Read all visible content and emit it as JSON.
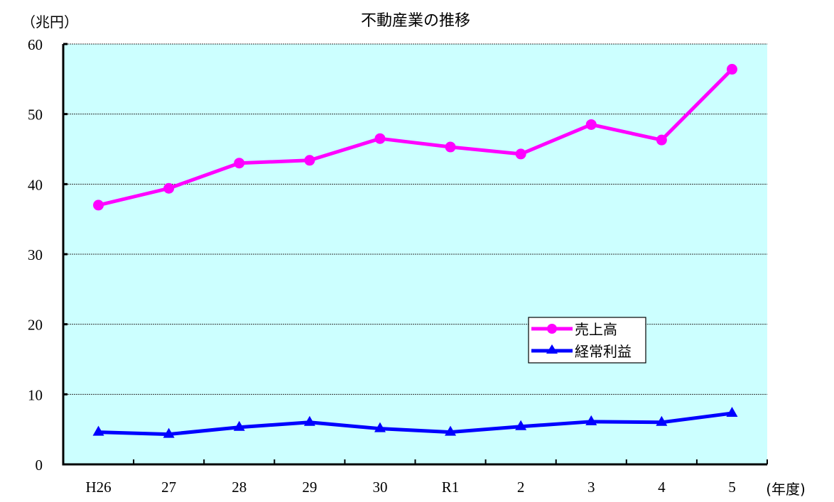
{
  "chart_data": {
    "type": "line",
    "title": "不動産業の推移",
    "ylabel": "（兆円）",
    "xlabel": "(年度)",
    "ylim": [
      0,
      60
    ],
    "yticks": [
      0,
      10,
      20,
      30,
      40,
      50,
      60
    ],
    "grid": true,
    "legend_position": "inside-right-lower",
    "categories": [
      "H26",
      "27",
      "28",
      "29",
      "30",
      "R1",
      "2",
      "3",
      "4",
      "5"
    ],
    "series": [
      {
        "name": "売上高",
        "color": "#FF00FF",
        "marker": "circle",
        "values": [
          37.0,
          39.4,
          43.0,
          43.4,
          46.5,
          45.3,
          44.3,
          48.5,
          46.3,
          56.4
        ]
      },
      {
        "name": "経常利益",
        "color": "#0000FF",
        "marker": "triangle",
        "values": [
          4.6,
          4.3,
          5.3,
          6.0,
          5.1,
          4.6,
          5.4,
          6.1,
          6.0,
          7.3
        ]
      }
    ]
  },
  "colors": {
    "plot_background": "#CCFFFF",
    "axis": "#000000",
    "grid": "#333333"
  }
}
